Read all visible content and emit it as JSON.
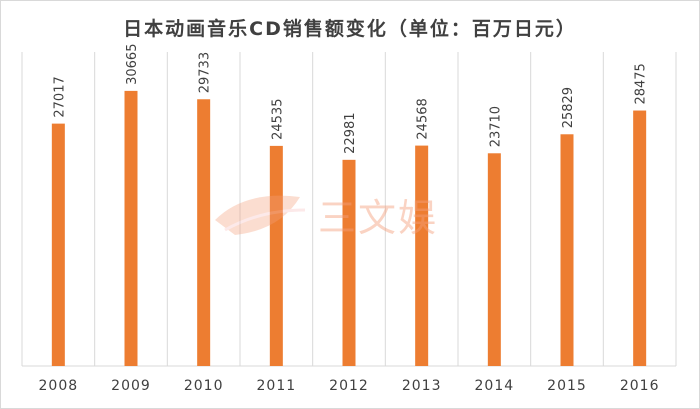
{
  "chart_data": {
    "type": "bar",
    "title": "日本动画音乐CD销售额变化（单位：百万日元）",
    "categories": [
      "2008",
      "2009",
      "2010",
      "2011",
      "2012",
      "2013",
      "2014",
      "2015",
      "2016"
    ],
    "values": [
      27017,
      30665,
      29733,
      24535,
      22981,
      24568,
      23710,
      25829,
      28475
    ],
    "ylim": [
      0,
      35000
    ],
    "grid": "vertical",
    "bar_color": "#ed7d31",
    "data_labels": "rotated"
  },
  "watermark": {
    "text": "三文娱",
    "icon": "leaf-icon",
    "color": "#f4a07c"
  }
}
